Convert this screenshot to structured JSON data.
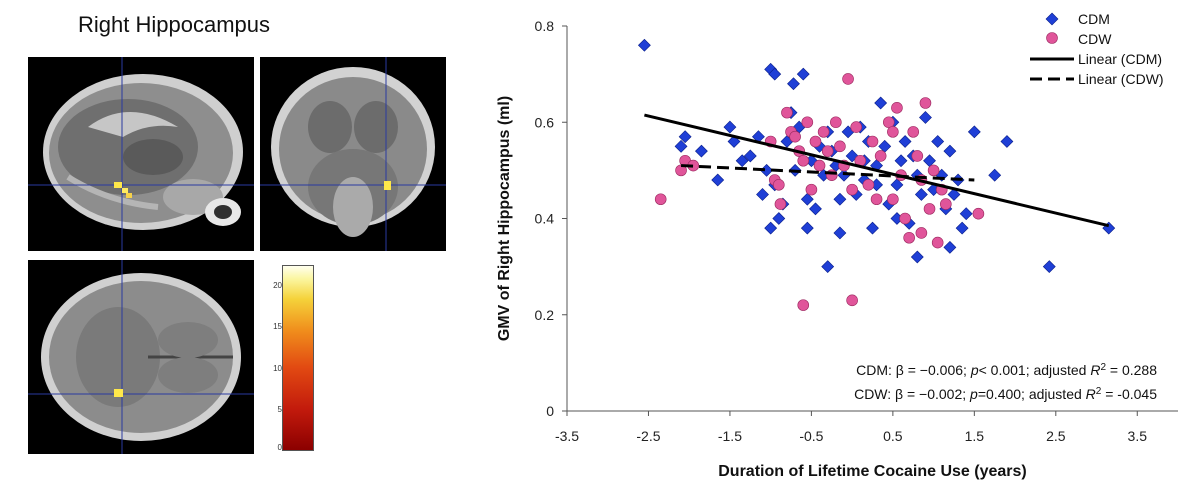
{
  "figure": {
    "panel_title": "Right Hippocampus",
    "colorbar_ticks": [
      "20",
      "15",
      "10",
      "5",
      "0"
    ],
    "colorbar_range": [
      0,
      22
    ]
  },
  "chart_data": {
    "type": "scatter",
    "title": "",
    "xlabel": "Duration of Lifetime Cocaine Use (years)",
    "ylabel": "GMV of Right Hippocampus (ml)",
    "xlim": [
      -3.5,
      4.0
    ],
    "ylim": [
      0,
      0.8
    ],
    "xticks": [
      -3.5,
      -2.5,
      -1.5,
      -0.5,
      0.5,
      1.5,
      2.5,
      3.5
    ],
    "xtick_labels": [
      "-3.5",
      "-2.5",
      "-1.5",
      "-0.5",
      "0.5",
      "1.5",
      "2.5",
      "3.5"
    ],
    "yticks": [
      0,
      0.2,
      0.4,
      0.6,
      0.8
    ],
    "ytick_labels": [
      "0",
      "0.2",
      "0.4",
      "0.6",
      "0.8"
    ],
    "grid": false,
    "legend_position": "top-right",
    "series": [
      {
        "name": "CDM",
        "marker": "diamond",
        "color": "#1f3fd6",
        "points": [
          [
            -2.55,
            0.76
          ],
          [
            -2.05,
            0.57
          ],
          [
            -2.1,
            0.55
          ],
          [
            -1.85,
            0.54
          ],
          [
            -1.65,
            0.48
          ],
          [
            -1.5,
            0.59
          ],
          [
            -1.45,
            0.56
          ],
          [
            -1.35,
            0.52
          ],
          [
            -1.25,
            0.53
          ],
          [
            -1.15,
            0.57
          ],
          [
            -1.1,
            0.45
          ],
          [
            -1.05,
            0.5
          ],
          [
            -1.0,
            0.38
          ],
          [
            -0.95,
            0.47
          ],
          [
            -0.9,
            0.4
          ],
          [
            -0.85,
            0.43
          ],
          [
            -0.8,
            0.56
          ],
          [
            -0.75,
            0.62
          ],
          [
            -0.72,
            0.68
          ],
          [
            -0.65,
            0.59
          ],
          [
            -0.6,
            0.7
          ],
          [
            -0.55,
            0.44
          ],
          [
            -0.5,
            0.52
          ],
          [
            -0.45,
            0.42
          ],
          [
            -0.4,
            0.55
          ],
          [
            -0.35,
            0.49
          ],
          [
            -0.3,
            0.58
          ],
          [
            -0.25,
            0.54
          ],
          [
            -0.2,
            0.51
          ],
          [
            -0.15,
            0.44
          ],
          [
            -0.1,
            0.49
          ],
          [
            -0.05,
            0.58
          ],
          [
            0.0,
            0.53
          ],
          [
            0.05,
            0.45
          ],
          [
            0.1,
            0.59
          ],
          [
            0.15,
            0.48
          ],
          [
            0.2,
            0.56
          ],
          [
            0.25,
            0.38
          ],
          [
            0.3,
            0.51
          ],
          [
            0.35,
            0.64
          ],
          [
            0.4,
            0.55
          ],
          [
            0.45,
            0.43
          ],
          [
            0.5,
            0.6
          ],
          [
            0.55,
            0.47
          ],
          [
            0.6,
            0.52
          ],
          [
            0.65,
            0.56
          ],
          [
            0.7,
            0.39
          ],
          [
            0.75,
            0.53
          ],
          [
            0.8,
            0.49
          ],
          [
            0.85,
            0.45
          ],
          [
            0.9,
            0.61
          ],
          [
            0.95,
            0.52
          ],
          [
            1.0,
            0.46
          ],
          [
            1.05,
            0.56
          ],
          [
            1.1,
            0.49
          ],
          [
            1.15,
            0.42
          ],
          [
            1.2,
            0.54
          ],
          [
            1.25,
            0.45
          ],
          [
            1.3,
            0.48
          ],
          [
            1.35,
            0.38
          ],
          [
            1.4,
            0.41
          ],
          [
            1.5,
            0.58
          ],
          [
            1.75,
            0.49
          ],
          [
            1.9,
            0.56
          ],
          [
            -0.3,
            0.3
          ],
          [
            -1.0,
            0.71
          ],
          [
            -0.95,
            0.7
          ],
          [
            0.8,
            0.32
          ],
          [
            1.2,
            0.34
          ],
          [
            -0.55,
            0.38
          ],
          [
            -0.7,
            0.5
          ],
          [
            0.15,
            0.52
          ],
          [
            2.42,
            0.3
          ],
          [
            3.15,
            0.38
          ],
          [
            0.3,
            0.47
          ],
          [
            -0.15,
            0.37
          ],
          [
            0.55,
            0.4
          ]
        ]
      },
      {
        "name": "CDW",
        "marker": "circle",
        "color": "#e0559a",
        "points": [
          [
            -2.35,
            0.44
          ],
          [
            -2.1,
            0.5
          ],
          [
            -2.05,
            0.52
          ],
          [
            -1.95,
            0.51
          ],
          [
            -1.0,
            0.56
          ],
          [
            -0.95,
            0.48
          ],
          [
            -0.9,
            0.47
          ],
          [
            -0.88,
            0.43
          ],
          [
            -0.8,
            0.62
          ],
          [
            -0.75,
            0.58
          ],
          [
            -0.7,
            0.57
          ],
          [
            -0.65,
            0.54
          ],
          [
            -0.6,
            0.52
          ],
          [
            -0.55,
            0.6
          ],
          [
            -0.5,
            0.46
          ],
          [
            -0.45,
            0.56
          ],
          [
            -0.4,
            0.51
          ],
          [
            -0.35,
            0.58
          ],
          [
            -0.3,
            0.54
          ],
          [
            -0.25,
            0.49
          ],
          [
            -0.2,
            0.6
          ],
          [
            -0.15,
            0.55
          ],
          [
            -0.1,
            0.51
          ],
          [
            -0.05,
            0.69
          ],
          [
            0.0,
            0.46
          ],
          [
            0.05,
            0.59
          ],
          [
            0.1,
            0.52
          ],
          [
            0.2,
            0.47
          ],
          [
            0.25,
            0.56
          ],
          [
            0.3,
            0.44
          ],
          [
            0.35,
            0.53
          ],
          [
            0.45,
            0.6
          ],
          [
            0.5,
            0.58
          ],
          [
            0.55,
            0.63
          ],
          [
            0.6,
            0.49
          ],
          [
            0.65,
            0.4
          ],
          [
            0.7,
            0.36
          ],
          [
            0.75,
            0.58
          ],
          [
            0.8,
            0.53
          ],
          [
            0.85,
            0.48
          ],
          [
            0.9,
            0.64
          ],
          [
            0.95,
            0.42
          ],
          [
            1.0,
            0.5
          ],
          [
            1.05,
            0.35
          ],
          [
            1.1,
            0.46
          ],
          [
            1.15,
            0.43
          ],
          [
            1.55,
            0.41
          ],
          [
            -0.6,
            0.22
          ],
          [
            0.0,
            0.23
          ],
          [
            0.5,
            0.44
          ],
          [
            0.85,
            0.37
          ]
        ]
      }
    ],
    "fit_lines": [
      {
        "name": "Linear (CDM)",
        "style": "solid",
        "x": [
          -2.55,
          3.15
        ],
        "y": [
          0.615,
          0.385
        ]
      },
      {
        "name": "Linear (CDW)",
        "style": "dashed",
        "x": [
          -2.1,
          1.5
        ],
        "y": [
          0.51,
          0.48
        ]
      }
    ],
    "annotations": [
      {
        "label": "CDM",
        "beta": "-0.006",
        "p": "< 0.001",
        "adjusted_R2": "0.288"
      },
      {
        "label": "CDW",
        "beta": "-0.002",
        "p": "=0.400",
        "adjusted_R2": "-0.045"
      }
    ]
  }
}
